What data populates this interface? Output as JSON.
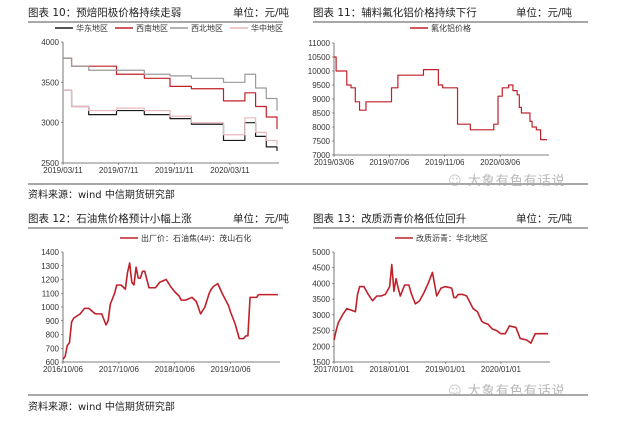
{
  "figures": [
    {
      "title": "图表 10：预焙阳极价格持续走弱",
      "unit": "单位：元/吨"
    },
    {
      "title": "图表 11：辅料氟化铝价格持续下行",
      "unit": "单位：元/吨"
    },
    {
      "title": "图表 12：石油焦价格预计小幅上涨",
      "unit": "单位：元/吨"
    },
    {
      "title": "图表 13：改质沥青价格低位回升",
      "unit": "单位：元/吨"
    }
  ],
  "sources": {
    "top": "资料来源：wind 中信期货研究部",
    "bottom": "资料来源：wind 中信期货研究部"
  },
  "watermark": "大象有色有话说",
  "chart_data": [
    {
      "type": "line",
      "title": "图表 10：预焙阳极价格持续走弱",
      "unit": "元/吨",
      "xlabel": "",
      "ylabel": "",
      "ylim": [
        2500,
        4000
      ],
      "yticks": [
        2500,
        3000,
        3500,
        4000
      ],
      "xticks": [
        "2019/03/11",
        "2019/07/11",
        "2019/11/11",
        "2020/03/11"
      ],
      "legend_position": "top",
      "grid": false,
      "x": [
        0,
        0.04,
        0.12,
        0.25,
        0.38,
        0.5,
        0.6,
        0.75,
        0.85,
        0.9,
        0.95,
        1.0
      ],
      "series": [
        {
          "name": "华东地区",
          "color": "#1a1a1a",
          "values": [
            3400,
            3200,
            3100,
            3150,
            3100,
            3050,
            2980,
            2780,
            3000,
            2830,
            2700,
            2650
          ]
        },
        {
          "name": "西南地区",
          "color": "#c0202a",
          "values": [
            3800,
            3700,
            3700,
            3600,
            3550,
            3450,
            3420,
            3270,
            3370,
            3200,
            3070,
            2920
          ]
        },
        {
          "name": "西北地区",
          "color": "#9a9a9a",
          "values": [
            3800,
            3700,
            3650,
            3650,
            3600,
            3580,
            3550,
            3500,
            3600,
            3430,
            3300,
            3150
          ]
        },
        {
          "name": "华中地区",
          "color": "#e8b8bc",
          "values": [
            3400,
            3200,
            3150,
            3180,
            3150,
            3080,
            3000,
            2850,
            3060,
            2880,
            2780,
            2720
          ]
        }
      ]
    },
    {
      "type": "line",
      "title": "图表 11：辅料氟化铝价格持续下行",
      "unit": "元/吨",
      "xlabel": "",
      "ylabel": "",
      "ylim": [
        7000,
        11000
      ],
      "yticks": [
        7000,
        7500,
        8000,
        8500,
        9000,
        9500,
        10000,
        10500,
        11000
      ],
      "xticks": [
        "2019/03/06",
        "2019/07/06",
        "2019/11/06",
        "2020/03/06"
      ],
      "legend_position": "top",
      "grid": false,
      "x": [
        0,
        0.01,
        0.05,
        0.06,
        0.08,
        0.1,
        0.12,
        0.15,
        0.2,
        0.27,
        0.3,
        0.33,
        0.42,
        0.47,
        0.49,
        0.51,
        0.58,
        0.64,
        0.75,
        0.77,
        0.79,
        0.82,
        0.84,
        0.86,
        0.87,
        0.88,
        0.9,
        0.92,
        0.93,
        0.95,
        0.97,
        1.0
      ],
      "series": [
        {
          "name": "氟化铝价格",
          "color": "#c0202a",
          "values": [
            10500,
            10000,
            10000,
            9500,
            9400,
            8900,
            8600,
            8900,
            8900,
            9400,
            9850,
            9850,
            10050,
            10050,
            9500,
            9400,
            8100,
            7900,
            8100,
            9100,
            9400,
            9500,
            9300,
            9150,
            8700,
            8500,
            8500,
            8200,
            8000,
            7900,
            7550,
            7550
          ]
        }
      ]
    },
    {
      "type": "line",
      "title": "图表 12：石油焦价格预计小幅上涨",
      "unit": "元/吨",
      "xlabel": "",
      "ylabel": "",
      "ylim": [
        600,
        1400
      ],
      "yticks": [
        600,
        700,
        800,
        900,
        1000,
        1100,
        1200,
        1300,
        1400
      ],
      "xticks": [
        "2016/10/06",
        "2017/10/06",
        "2018/10/06",
        "2019/10/06"
      ],
      "legend_position": "top",
      "grid": false,
      "x": [
        0,
        0.01,
        0.02,
        0.03,
        0.04,
        0.05,
        0.06,
        0.08,
        0.1,
        0.12,
        0.15,
        0.18,
        0.2,
        0.21,
        0.22,
        0.24,
        0.25,
        0.27,
        0.29,
        0.3,
        0.31,
        0.32,
        0.33,
        0.34,
        0.35,
        0.36,
        0.37,
        0.38,
        0.4,
        0.42,
        0.43,
        0.45,
        0.48,
        0.5,
        0.52,
        0.54,
        0.55,
        0.57,
        0.6,
        0.62,
        0.64,
        0.66,
        0.68,
        0.69,
        0.7,
        0.72,
        0.74,
        0.76,
        0.77,
        0.78,
        0.8,
        0.82,
        0.84,
        0.85,
        0.86,
        0.87,
        0.9,
        0.91,
        0.93,
        0.94,
        0.96,
        1.0
      ],
      "series": [
        {
          "name": "出厂价：石油焦(4#)：茂山石化",
          "color": "#c0202a",
          "values": [
            620,
            640,
            720,
            740,
            890,
            920,
            930,
            950,
            990,
            990,
            950,
            950,
            870,
            900,
            1020,
            1100,
            1160,
            1160,
            1130,
            1250,
            1320,
            1180,
            1160,
            1290,
            1210,
            1210,
            1260,
            1260,
            1140,
            1140,
            1140,
            1180,
            1200,
            1150,
            1110,
            1080,
            1050,
            1050,
            1070,
            1040,
            950,
            1000,
            1100,
            1130,
            1150,
            1170,
            1100,
            1040,
            1010,
            960,
            880,
            770,
            770,
            790,
            790,
            1070,
            1070,
            1090,
            1090,
            1090,
            1090,
            1090
          ]
        }
      ]
    },
    {
      "type": "line",
      "title": "图表 13：改质沥青价格低位回升",
      "unit": "元/吨",
      "xlabel": "",
      "ylabel": "",
      "ylim": [
        1500,
        5000
      ],
      "yticks": [
        1500,
        2000,
        2500,
        3000,
        3500,
        4000,
        4500,
        5000
      ],
      "xticks": [
        "2017/01/01",
        "2018/01/01",
        "2019/01/01",
        "2020/01/01"
      ],
      "legend_position": "top",
      "grid": false,
      "x": [
        0,
        0.01,
        0.02,
        0.04,
        0.06,
        0.08,
        0.1,
        0.11,
        0.12,
        0.14,
        0.16,
        0.18,
        0.2,
        0.22,
        0.24,
        0.26,
        0.27,
        0.28,
        0.29,
        0.3,
        0.31,
        0.33,
        0.35,
        0.36,
        0.38,
        0.4,
        0.42,
        0.44,
        0.46,
        0.48,
        0.5,
        0.52,
        0.55,
        0.56,
        0.57,
        0.58,
        0.6,
        0.62,
        0.65,
        0.67,
        0.69,
        0.7,
        0.72,
        0.74,
        0.76,
        0.78,
        0.8,
        0.82,
        0.85,
        0.87,
        0.9,
        0.92,
        0.94,
        0.96,
        0.98,
        0.99,
        1.0
      ],
      "series": [
        {
          "name": "改质沥青：华北地区",
          "color": "#c0202a",
          "values": [
            2200,
            2500,
            2750,
            3000,
            3200,
            3150,
            3100,
            3650,
            3900,
            3900,
            3650,
            3450,
            3600,
            3600,
            3650,
            3900,
            4600,
            3750,
            4150,
            3850,
            3600,
            3950,
            3950,
            3700,
            3350,
            3450,
            3700,
            4000,
            4350,
            3600,
            3850,
            3900,
            3850,
            3550,
            3550,
            3650,
            3650,
            3600,
            3200,
            3100,
            2800,
            2750,
            2700,
            2550,
            2500,
            2400,
            2400,
            2650,
            2600,
            2250,
            2200,
            2100,
            2400,
            2400,
            2400,
            2400,
            2400
          ]
        }
      ]
    }
  ]
}
